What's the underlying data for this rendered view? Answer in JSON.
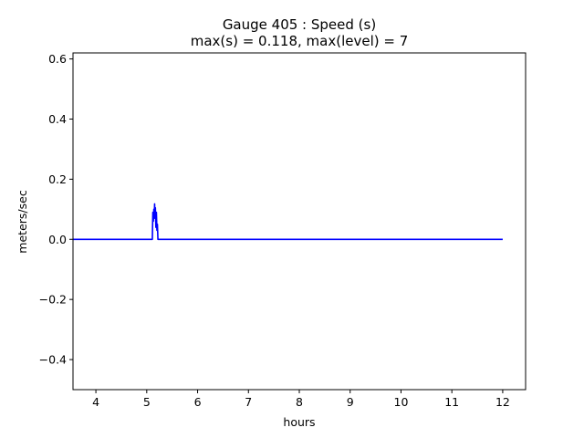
{
  "chart_data": {
    "type": "line",
    "title": "Gauge 405 : Speed (s)",
    "subtitle": "max(s) =   0.118,    max(level) = 7",
    "xlabel": "hours",
    "ylabel": "meters/sec",
    "xlim": [
      3.55,
      12.45
    ],
    "ylim": [
      -0.5,
      0.62
    ],
    "xticks": [
      4,
      5,
      6,
      7,
      8,
      9,
      10,
      11,
      12
    ],
    "xtick_labels": [
      "4",
      "5",
      "6",
      "7",
      "8",
      "9",
      "10",
      "11",
      "12"
    ],
    "yticks": [
      -0.4,
      -0.2,
      0.0,
      0.2,
      0.4,
      0.6
    ],
    "ytick_labels": [
      "−0.4",
      "−0.2",
      "0.0",
      "0.2",
      "0.4",
      "0.6"
    ],
    "grid": false,
    "series": [
      {
        "color": "#0000ff",
        "x": [
          3.55,
          5.11,
          5.12,
          5.13,
          5.14,
          5.15,
          5.155,
          5.16,
          5.17,
          5.18,
          5.19,
          5.2,
          5.21,
          5.22,
          5.23,
          12.0
        ],
        "y": [
          0.0,
          0.0,
          0.09,
          0.06,
          0.1,
          0.085,
          0.118,
          0.07,
          0.105,
          0.04,
          0.09,
          0.03,
          0.05,
          0.0,
          0.0,
          0.0
        ]
      }
    ]
  }
}
